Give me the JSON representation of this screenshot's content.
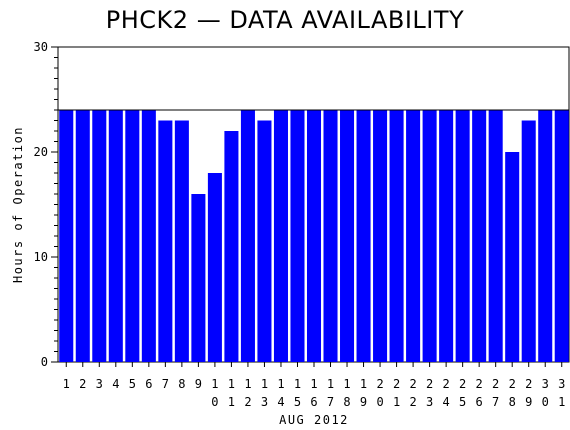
{
  "chart_data": {
    "type": "bar",
    "title": "PHCK2 — DATA AVAILABILITY",
    "xlabel": "AUG 2012",
    "ylabel": "Hours of Operation",
    "categories": [
      "1",
      "2",
      "3",
      "4",
      "5",
      "6",
      "7",
      "8",
      "9",
      "10",
      "11",
      "12",
      "13",
      "14",
      "15",
      "16",
      "17",
      "18",
      "19",
      "20",
      "21",
      "22",
      "23",
      "24",
      "25",
      "26",
      "27",
      "28",
      "29",
      "30",
      "31"
    ],
    "values": [
      24,
      24,
      24,
      24,
      24,
      24,
      23,
      23,
      16,
      18,
      22,
      24,
      23,
      24,
      24,
      24,
      24,
      24,
      24,
      24,
      24,
      24,
      24,
      24,
      24,
      24,
      24,
      20,
      23,
      24,
      24
    ],
    "ylim": [
      0,
      30
    ],
    "yticks": [
      "0",
      "10",
      "20",
      "30"
    ],
    "reference_line": 24,
    "bar_color": "#0000ff",
    "grid": false
  }
}
